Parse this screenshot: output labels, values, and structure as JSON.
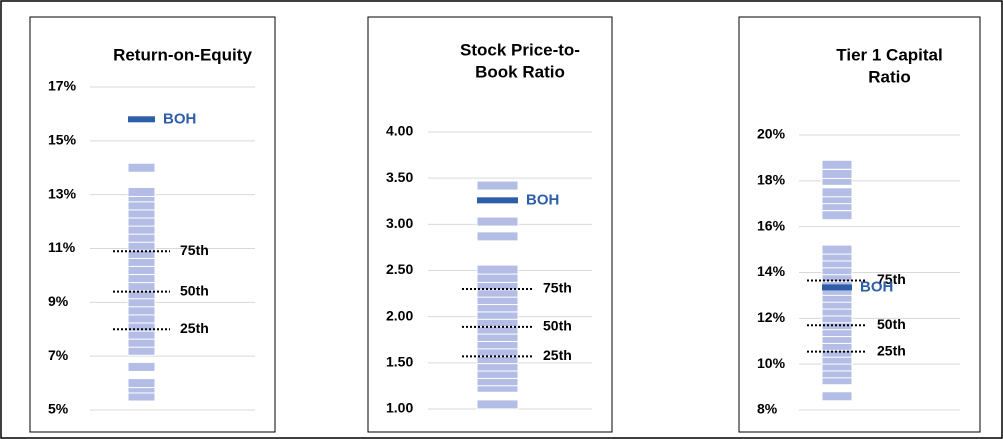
{
  "chart_data": [
    {
      "type": "strip",
      "title": [
        "Return-on-Equity"
      ],
      "ylim": [
        5,
        17
      ],
      "yticks": [
        {
          "value": 5,
          "label": "5%"
        },
        {
          "value": 7,
          "label": "7%"
        },
        {
          "value": 9,
          "label": "9%"
        },
        {
          "value": 11,
          "label": "11%"
        },
        {
          "value": 13,
          "label": "13%"
        },
        {
          "value": 15,
          "label": "15%"
        },
        {
          "value": 17,
          "label": "17%"
        }
      ],
      "grid": true,
      "color": "#b4bde6",
      "values": [
        5.5,
        5.8,
        6.0,
        6.6,
        7.2,
        7.5,
        7.8,
        8.1,
        8.4,
        8.7,
        9.0,
        9.3,
        9.6,
        9.9,
        10.2,
        10.5,
        10.8,
        11.1,
        11.4,
        11.7,
        12.0,
        12.3,
        12.6,
        12.9,
        13.1,
        14.0
      ],
      "markers": [
        {
          "label": "BOH",
          "value": 15.8,
          "color": "#2e5ea8"
        }
      ],
      "percentiles": [
        {
          "label": "75th",
          "value": 10.9
        },
        {
          "label": "50th",
          "value": 9.4
        },
        {
          "label": "25th",
          "value": 8.0
        }
      ]
    },
    {
      "type": "strip",
      "title": [
        "Stock Price-to-",
        "Book Ratio"
      ],
      "ylim": [
        1,
        4
      ],
      "yticks": [
        {
          "value": 1,
          "label": "1.00"
        },
        {
          "value": 1.5,
          "label": "1.50"
        },
        {
          "value": 2,
          "label": "2.00"
        },
        {
          "value": 2.5,
          "label": "2.50"
        },
        {
          "value": 3,
          "label": "3.00"
        },
        {
          "value": 3.5,
          "label": "3.50"
        },
        {
          "value": 4,
          "label": "4.00"
        }
      ],
      "grid": true,
      "color": "#b4bde6",
      "values": [
        1.05,
        1.23,
        1.3,
        1.38,
        1.46,
        1.54,
        1.62,
        1.7,
        1.78,
        1.86,
        1.94,
        2.02,
        2.1,
        2.18,
        2.26,
        2.34,
        2.42,
        2.51,
        2.87,
        3.03,
        3.42
      ],
      "markers": [
        {
          "label": "BOH",
          "value": 3.26,
          "color": "#2e5ea8"
        }
      ],
      "percentiles": [
        {
          "label": "75th",
          "value": 2.3
        },
        {
          "label": "50th",
          "value": 1.89
        },
        {
          "label": "25th",
          "value": 1.57
        }
      ]
    },
    {
      "type": "strip",
      "title": [
        "Tier 1 Capital",
        "Ratio"
      ],
      "ylim": [
        8,
        20
      ],
      "yticks": [
        {
          "value": 8,
          "label": "8%"
        },
        {
          "value": 10,
          "label": "10%"
        },
        {
          "value": 12,
          "label": "12%"
        },
        {
          "value": 14,
          "label": "14%"
        },
        {
          "value": 16,
          "label": "16%"
        },
        {
          "value": 18,
          "label": "18%"
        },
        {
          "value": 20,
          "label": "20%"
        }
      ],
      "grid": true,
      "color": "#b4bde6",
      "values": [
        8.6,
        9.3,
        9.6,
        9.9,
        10.2,
        10.5,
        10.8,
        11.1,
        11.4,
        11.7,
        12.0,
        12.3,
        12.6,
        12.9,
        13.2,
        13.5,
        13.8,
        14.1,
        14.4,
        14.7,
        15.0,
        16.5,
        16.9,
        17.2,
        17.5,
        18.0,
        18.3,
        18.7
      ],
      "markers": [
        {
          "label": "BOH",
          "value": 13.35,
          "color": "#2e5ea8"
        }
      ],
      "percentiles": [
        {
          "label": "75th",
          "value": 13.65
        },
        {
          "label": "50th",
          "value": 11.7
        },
        {
          "label": "25th",
          "value": 10.55
        }
      ]
    }
  ]
}
